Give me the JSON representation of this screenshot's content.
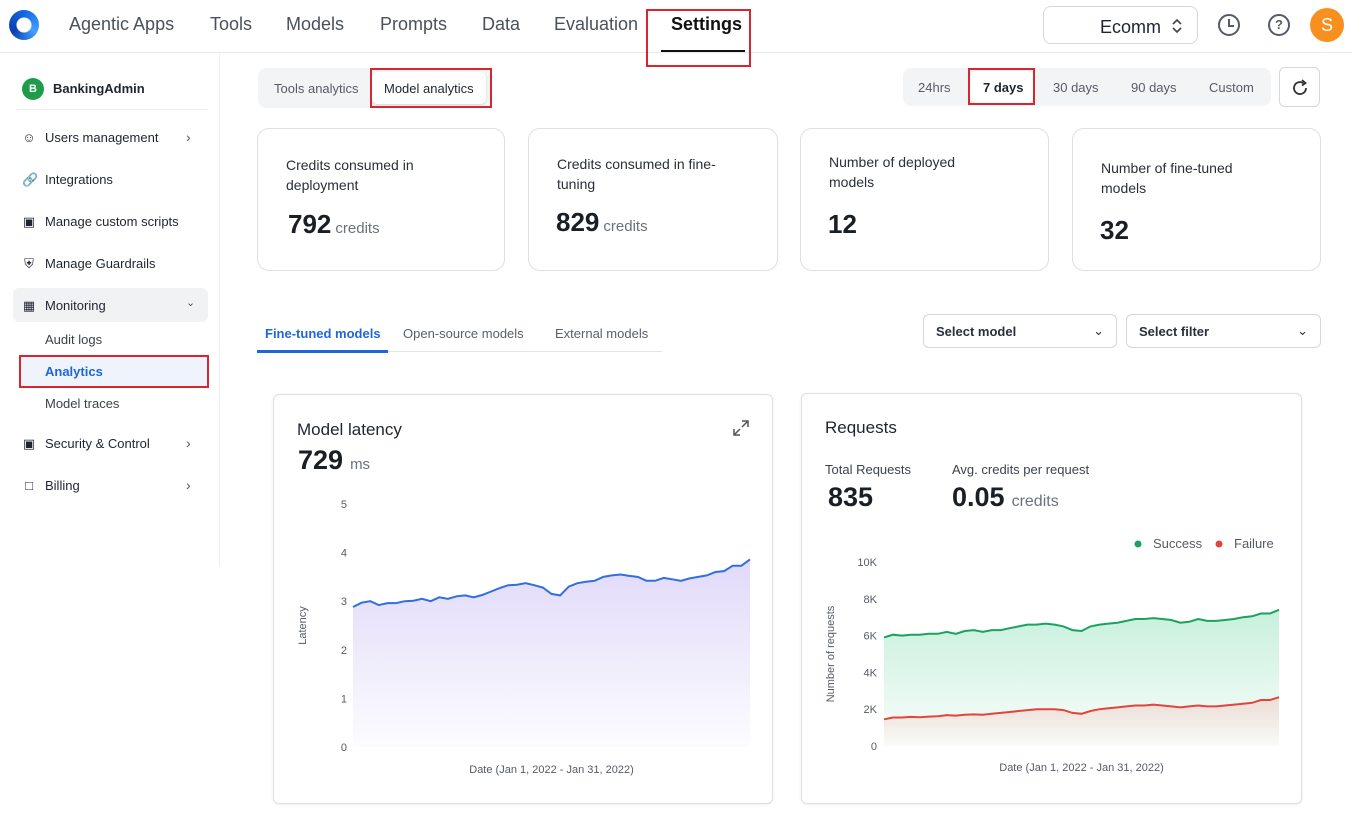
{
  "nav": {
    "items": [
      "Agentic Apps",
      "Tools",
      "Models",
      "Prompts",
      "Data",
      "Evaluation",
      "Settings"
    ],
    "active": "Settings",
    "workspace": "Ecomm",
    "avatar_initial": "S"
  },
  "sidebar": {
    "org_initial": "B",
    "org_name": "BankingAdmin",
    "items": [
      {
        "label": "Users management",
        "icon": "users-icon"
      },
      {
        "label": "Integrations",
        "icon": "link-icon"
      },
      {
        "label": "Manage custom scripts",
        "icon": "scripts-icon"
      },
      {
        "label": "Manage Guardrails",
        "icon": "shield-icon"
      },
      {
        "label": "Monitoring",
        "icon": "monitoring-icon"
      },
      {
        "label": "Security & Control",
        "icon": "lock-icon"
      },
      {
        "label": "Billing",
        "icon": "book-icon"
      }
    ],
    "monitoring_sub": [
      "Audit logs",
      "Analytics",
      "Model traces"
    ],
    "active_sub": "Analytics"
  },
  "analytics_tabs": [
    "Tools analytics",
    "Model analytics"
  ],
  "active_analytics_tab": "Model analytics",
  "time_ranges": [
    "24hrs",
    "7 days",
    "30 days",
    "90 days",
    "Custom"
  ],
  "active_range": "7 days",
  "metrics": [
    {
      "title": "Credits consumed in deployment",
      "value": "792",
      "unit": "credits"
    },
    {
      "title": "Credits consumed in fine-tuning",
      "value": "829",
      "unit": "credits"
    },
    {
      "title": "Number of deployed models",
      "value": "12",
      "unit": ""
    },
    {
      "title": "Number of fine-tuned models",
      "value": "32",
      "unit": ""
    }
  ],
  "model_tabs": [
    "Fine-tuned models",
    "Open-source models",
    "External models"
  ],
  "active_model_tab": "Fine-tuned models",
  "filters": {
    "model": "Select model",
    "filter": "Select filter"
  },
  "latency": {
    "title": "Model latency",
    "value": "729",
    "unit": "ms"
  },
  "requests": {
    "title": "Requests",
    "total_label": "Total Requests",
    "total_value": "835",
    "avg_label": "Avg. credits per request",
    "avg_value": "0.05",
    "avg_unit": "credits"
  },
  "colors": {
    "accent": "#1f67d8",
    "highlight": "#d8262f",
    "success": "#1aa260",
    "failure": "#e2453c",
    "latency_line": "#2f6fe0"
  },
  "chart_data": [
    {
      "type": "area",
      "ylabel": "Latency",
      "xlabel": "Date (Jan 1, 2022 - Jan 31, 2022)",
      "ylim": [
        0,
        5
      ],
      "yticks": [
        "0",
        "1",
        "2",
        "3",
        "4",
        "5"
      ],
      "series": [
        {
          "values": [
            2.88,
            2.97,
            3.0,
            2.92,
            2.96,
            2.96,
            3.0,
            3.01,
            3.05,
            3.0,
            3.08,
            3.05,
            3.1,
            3.12,
            3.08,
            3.13,
            3.2,
            3.27,
            3.33,
            3.34,
            3.37,
            3.33,
            3.28,
            3.15,
            3.12,
            3.3,
            3.37,
            3.4,
            3.42,
            3.5,
            3.53,
            3.55,
            3.52,
            3.5,
            3.42,
            3.42,
            3.48,
            3.45,
            3.42,
            3.47,
            3.5,
            3.53,
            3.6,
            3.62,
            3.73,
            3.73,
            3.86
          ]
        }
      ]
    },
    {
      "type": "area",
      "ylabel": "Number of requests",
      "xlabel": "Date (Jan 1, 2022 - Jan 31, 2022)",
      "ylim": [
        0,
        10000
      ],
      "yticks": [
        "0",
        "2K",
        "4K",
        "6K",
        "8K",
        "10K"
      ],
      "legend": "top-right",
      "series": [
        {
          "name": "Success",
          "values": [
            5900,
            6050,
            6000,
            6050,
            6050,
            6100,
            6100,
            6200,
            6100,
            6250,
            6300,
            6200,
            6300,
            6300,
            6400,
            6500,
            6600,
            6600,
            6650,
            6600,
            6500,
            6300,
            6250,
            6500,
            6600,
            6650,
            6700,
            6800,
            6900,
            6900,
            6950,
            6900,
            6850,
            6700,
            6750,
            6900,
            6800,
            6800,
            6850,
            6900,
            7000,
            7050,
            7200,
            7200,
            7400
          ]
        },
        {
          "name": "Failure",
          "values": [
            1450,
            1550,
            1550,
            1580,
            1560,
            1600,
            1620,
            1680,
            1650,
            1700,
            1720,
            1700,
            1750,
            1800,
            1850,
            1900,
            1950,
            2000,
            2000,
            2000,
            1950,
            1800,
            1750,
            1900,
            2000,
            2050,
            2100,
            2150,
            2200,
            2200,
            2250,
            2200,
            2150,
            2100,
            2150,
            2200,
            2150,
            2150,
            2200,
            2250,
            2300,
            2350,
            2500,
            2500,
            2650
          ]
        }
      ]
    }
  ]
}
